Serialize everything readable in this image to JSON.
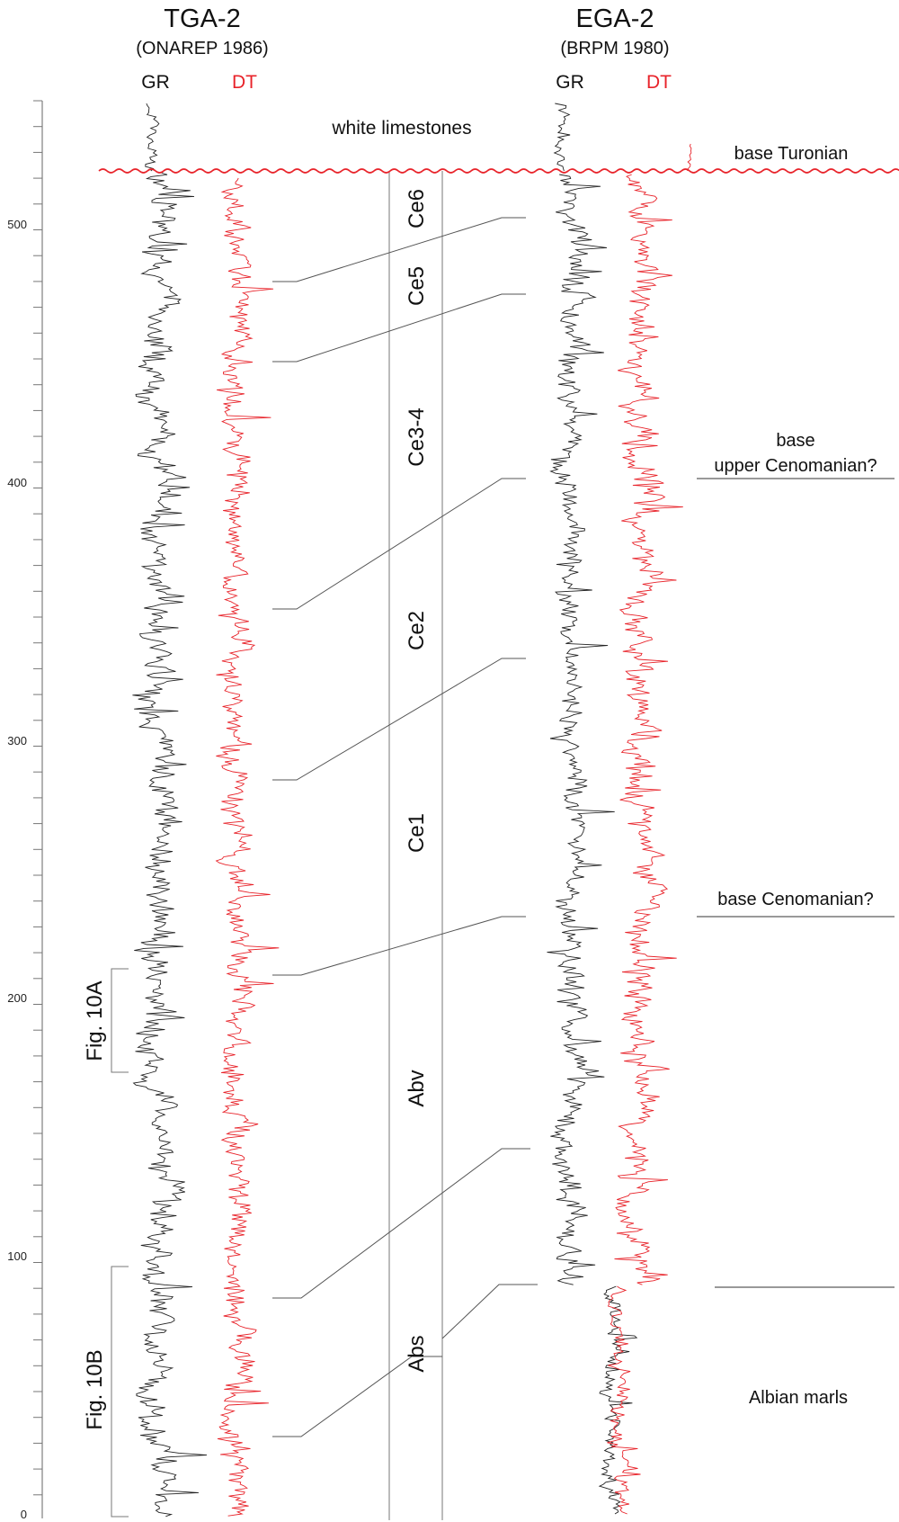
{
  "wells": {
    "left": {
      "name": "TGA-2",
      "source": "(ONAREP 1986)",
      "gr": "GR",
      "dt": "DT"
    },
    "right": {
      "name": "EGA-2",
      "source": "(BRPM 1980)",
      "gr": "GR",
      "dt": "DT"
    }
  },
  "depth_axis": {
    "ticks": [
      "500",
      "400",
      "300",
      "200",
      "100",
      "0"
    ]
  },
  "units": [
    "Ce6",
    "Ce5",
    "Ce3-4",
    "Ce2",
    "Ce1",
    "Abv",
    "Abs"
  ],
  "annotations": {
    "white_limestones": "white limestones",
    "base_turonian": "base Turonian",
    "base_upper_cenomanian_1": "base",
    "base_upper_cenomanian_2": "upper Cenomanian?",
    "base_cenomanian": "base Cenomanian?",
    "albian_marls": "Albian marls"
  },
  "figure_refs": {
    "fig10a": "Fig. 10A",
    "fig10b": "Fig. 10B"
  },
  "colors": {
    "gr": "#222222",
    "dt": "#e8232a",
    "boundary": "#e8232a",
    "axis": "#555555"
  }
}
